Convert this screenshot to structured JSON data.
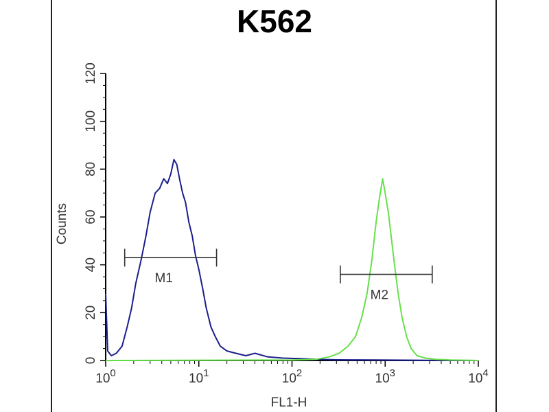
{
  "chart_data": {
    "type": "line",
    "title": "K562",
    "xlabel": "FL1-H",
    "ylabel": "Counts",
    "x_scale": "log",
    "xlim": [
      1,
      10000
    ],
    "ylim": [
      0,
      120
    ],
    "x_ticks": [
      {
        "value": 1,
        "base": "10",
        "exp": "0"
      },
      {
        "value": 10,
        "base": "10",
        "exp": "1"
      },
      {
        "value": 100,
        "base": "10",
        "exp": "2"
      },
      {
        "value": 1000,
        "base": "10",
        "exp": "3"
      },
      {
        "value": 10000,
        "base": "10",
        "exp": "4"
      }
    ],
    "y_ticks": [
      "0",
      "20",
      "40",
      "60",
      "80",
      "100",
      "120"
    ],
    "grid": false,
    "series": [
      {
        "color": "#1a1f8c",
        "points": [
          [
            1.0,
            28
          ],
          [
            1.05,
            4
          ],
          [
            1.15,
            2
          ],
          [
            1.3,
            3
          ],
          [
            1.5,
            6
          ],
          [
            1.7,
            14
          ],
          [
            1.9,
            22
          ],
          [
            2.1,
            32
          ],
          [
            2.4,
            42
          ],
          [
            2.7,
            52
          ],
          [
            3.0,
            62
          ],
          [
            3.4,
            70
          ],
          [
            3.8,
            72
          ],
          [
            4.2,
            76
          ],
          [
            4.6,
            74
          ],
          [
            5.0,
            78
          ],
          [
            5.4,
            84
          ],
          [
            5.8,
            82
          ],
          [
            6.2,
            76
          ],
          [
            6.7,
            70
          ],
          [
            7.2,
            66
          ],
          [
            7.8,
            58
          ],
          [
            8.5,
            52
          ],
          [
            9.2,
            44
          ],
          [
            10,
            38
          ],
          [
            11,
            30
          ],
          [
            12,
            22
          ],
          [
            13.5,
            14
          ],
          [
            15,
            10
          ],
          [
            17,
            6
          ],
          [
            20,
            4
          ],
          [
            25,
            3
          ],
          [
            32,
            2
          ],
          [
            40,
            3
          ],
          [
            55,
            1.5
          ],
          [
            80,
            1
          ],
          [
            120,
            0.8
          ],
          [
            180,
            0.5
          ],
          [
            300,
            0.3
          ],
          [
            800,
            0.2
          ],
          [
            3000,
            0.1
          ],
          [
            10000,
            0
          ]
        ]
      },
      {
        "color": "#66e04a",
        "points": [
          [
            1.0,
            0
          ],
          [
            100,
            0.2
          ],
          [
            180,
            0.5
          ],
          [
            250,
            1.5
          ],
          [
            320,
            3
          ],
          [
            400,
            6
          ],
          [
            480,
            10
          ],
          [
            560,
            18
          ],
          [
            640,
            28
          ],
          [
            720,
            42
          ],
          [
            800,
            58
          ],
          [
            870,
            68
          ],
          [
            940,
            76
          ],
          [
            1000,
            70
          ],
          [
            1080,
            62
          ],
          [
            1160,
            52
          ],
          [
            1260,
            40
          ],
          [
            1380,
            28
          ],
          [
            1520,
            18
          ],
          [
            1700,
            10
          ],
          [
            1900,
            5
          ],
          [
            2200,
            2
          ],
          [
            2700,
            1
          ],
          [
            3500,
            0.5
          ],
          [
            5000,
            0.2
          ],
          [
            10000,
            0
          ]
        ]
      }
    ],
    "gates": [
      {
        "label": "M1",
        "x_start": 1.6,
        "x_end": 15.5,
        "y": 43
      },
      {
        "label": "M2",
        "x_start": 330,
        "x_end": 3200,
        "y": 36
      }
    ]
  }
}
